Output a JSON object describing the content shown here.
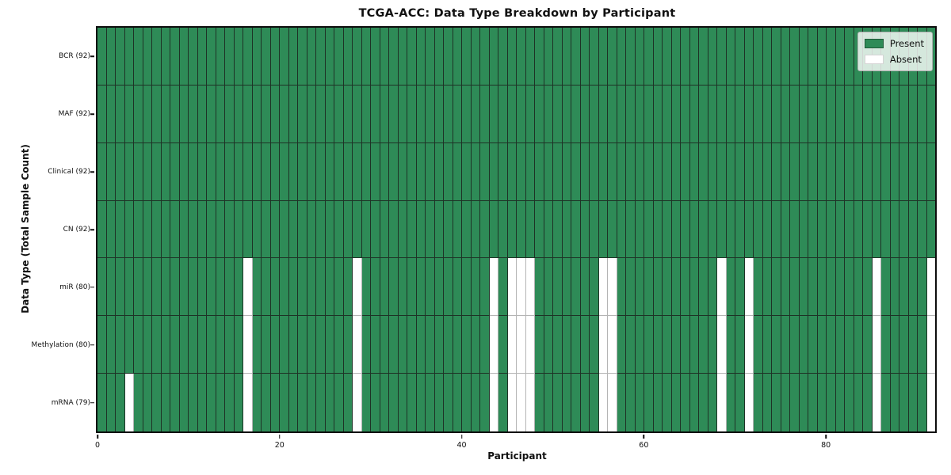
{
  "title": "TCGA-ACC: Data Type Breakdown by Participant",
  "axes": {
    "xlabel": "Participant",
    "ylabel": "Data Type (Total Sample Count)"
  },
  "legend": {
    "present_label": "Present",
    "absent_label": "Absent"
  },
  "colors": {
    "present": "#2e8b57",
    "absent": "#ffffff",
    "present_edge": "#1e3226",
    "absent_edge": "#b4b4b4",
    "frame": "#0d0d0d",
    "tick": "#111111",
    "legend_border": "#b0b0b0"
  },
  "chart_data": {
    "type": "heatmap",
    "title": "TCGA-ACC: Data Type Breakdown by Participant",
    "xlabel": "Participant",
    "ylabel": "Data Type (Total Sample Count)",
    "n_participants": 92,
    "x_range": [
      0,
      92
    ],
    "x_ticks": [
      0,
      20,
      40,
      60,
      80
    ],
    "legend_entries": [
      "Present",
      "Absent"
    ],
    "cell_values": "1 = present (green), 0 = absent (white)",
    "rows": [
      {
        "label": "BCR (92)",
        "data_type": "BCR",
        "present_count": 92,
        "absent_participants": []
      },
      {
        "label": "MAF (92)",
        "data_type": "MAF",
        "present_count": 92,
        "absent_participants": []
      },
      {
        "label": "Clinical (92)",
        "data_type": "Clinical",
        "present_count": 92,
        "absent_participants": []
      },
      {
        "label": "CN (92)",
        "data_type": "CN",
        "present_count": 92,
        "absent_participants": []
      },
      {
        "label": "miR (80)",
        "data_type": "miR",
        "present_count": 80,
        "absent_participants": [
          16,
          28,
          43,
          45,
          46,
          47,
          55,
          56,
          68,
          71,
          85,
          91
        ]
      },
      {
        "label": "Methylation (80)",
        "data_type": "Methylation",
        "present_count": 80,
        "absent_participants": [
          16,
          28,
          43,
          45,
          46,
          47,
          55,
          56,
          68,
          71,
          85,
          91
        ]
      },
      {
        "label": "mRNA (79)",
        "data_type": "mRNA",
        "present_count": 79,
        "absent_participants": [
          3,
          16,
          28,
          43,
          45,
          46,
          47,
          55,
          56,
          68,
          71,
          85,
          91
        ]
      }
    ]
  }
}
